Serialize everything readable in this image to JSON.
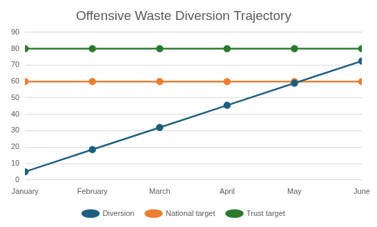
{
  "chart_data": {
    "type": "line",
    "title": "Offensive Waste Diversion Trajectory",
    "categories": [
      "January",
      "February",
      "March",
      "April",
      "May",
      "June"
    ],
    "series": [
      {
        "name": "Diversion",
        "color": "#1f5f7f",
        "values": [
          5,
          18.5,
          32,
          45.5,
          59,
          72.5
        ]
      },
      {
        "name": "National target",
        "color": "#ed7d31",
        "values": [
          60,
          60,
          60,
          60,
          60,
          60
        ]
      },
      {
        "name": "Trust target",
        "color": "#2a7a2e",
        "values": [
          80,
          80,
          80,
          80,
          80,
          80
        ]
      }
    ],
    "ylim": [
      0,
      90
    ],
    "yticks": [
      0,
      10,
      20,
      30,
      40,
      50,
      60,
      70,
      80,
      90
    ],
    "grid": true,
    "legend": "bottom",
    "marker": "circle",
    "line_style": "solid"
  }
}
